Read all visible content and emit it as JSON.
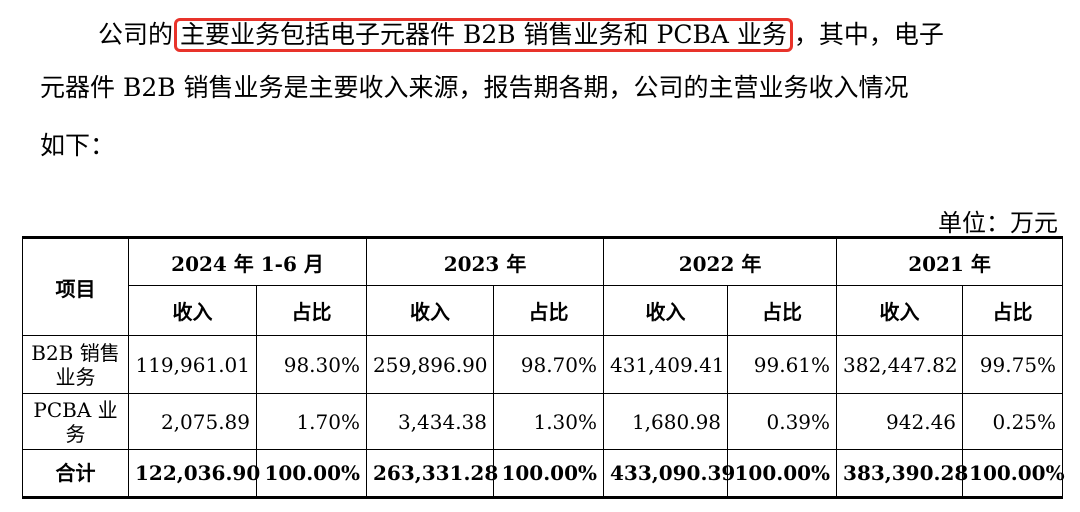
{
  "paragraph": {
    "line1_pre": "公司的",
    "line1_highlight": "主要业务包括电子元器件 B2B 销售业务和 PCBA 业务",
    "line1_post": "，其中，电子",
    "line2": "元器件 B2B 销售业务是主要收入来源，报告期各期，公司的主营业务收入情况",
    "line3": "如下："
  },
  "unit_label": "单位：万元",
  "highlight_color": "#e8332a",
  "table": {
    "item_header": "项目",
    "periods": [
      "2024 年 1-6 月",
      "2023 年",
      "2022 年",
      "2021 年"
    ],
    "sub_headers": {
      "income": "收入",
      "ratio": "占比"
    },
    "rows": [
      {
        "label": "B2B 销售业务",
        "cells": [
          "119,961.01",
          "98.30%",
          "259,896.90",
          "98.70%",
          "431,409.41",
          "99.61%",
          "382,447.82",
          "99.75%"
        ]
      },
      {
        "label": "PCBA 业务",
        "cells": [
          "2,075.89",
          "1.70%",
          "3,434.38",
          "1.30%",
          "1,680.98",
          "0.39%",
          "942.46",
          "0.25%"
        ]
      }
    ],
    "total": {
      "label": "合计",
      "cells": [
        "122,036.90",
        "100.00%",
        "263,331.28",
        "100.00%",
        "433,090.39",
        "100.00%",
        "383,390.28",
        "100.00%"
      ]
    }
  }
}
